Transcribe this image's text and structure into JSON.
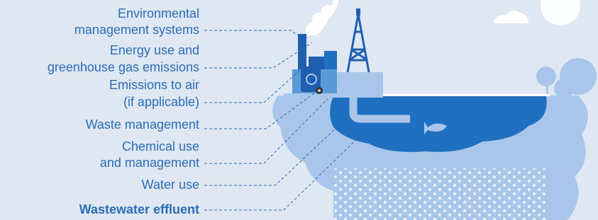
{
  "labels": [
    {
      "lines": [
        "Environmental",
        "management systems"
      ]
    },
    {
      "lines": [
        "Energy use and",
        "greenhouse gas emissions"
      ]
    },
    {
      "lines": [
        "Emissions to air",
        "(if applicable)"
      ]
    },
    {
      "lines": [
        "Waste management"
      ]
    },
    {
      "lines": [
        "Chemical use",
        "and management"
      ]
    },
    {
      "lines": [
        "Water use"
      ]
    },
    {
      "lines": [
        "Wastewater effluent"
      ]
    }
  ]
}
